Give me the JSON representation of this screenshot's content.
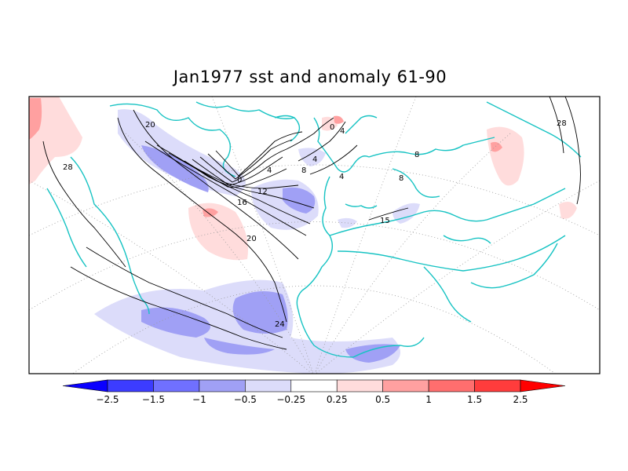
{
  "title": "Jan1977 sst and anomaly 61-90",
  "colors": {
    "coast": "#17c3c3",
    "contour": "#000000",
    "grid": "#9a9a9a"
  },
  "contour_labels": [
    "20",
    "28",
    "0",
    "4",
    "4",
    "8",
    "12",
    "16",
    "20",
    "24",
    "8",
    "15",
    "4",
    "28",
    "0",
    "4",
    "8"
  ],
  "colorbar": {
    "labels": [
      "−2.5",
      "−1.5",
      "−1",
      "−0.5",
      "−0.25",
      "0.25",
      "0.5",
      "1",
      "1.5",
      "2.5"
    ],
    "colors": [
      "#0a00ff",
      "#3c3cff",
      "#7070ff",
      "#a0a0f5",
      "#dcdcfa",
      "#ffffff",
      "#ffdcdc",
      "#ffa0a0",
      "#ff6e6e",
      "#ff3c3c",
      "#ff0000"
    ]
  }
}
